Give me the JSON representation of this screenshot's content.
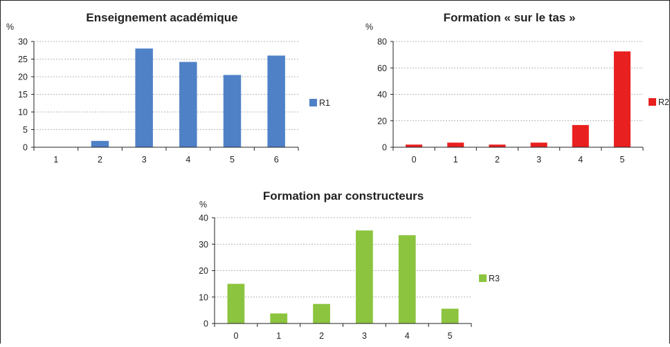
{
  "chart_data": [
    {
      "type": "bar",
      "title": "Enseignement académique",
      "ylabel": "%",
      "categories": [
        "1",
        "2",
        "3",
        "4",
        "5",
        "6"
      ],
      "ylim": [
        0,
        30
      ],
      "yticks": [
        0,
        5,
        10,
        15,
        20,
        25,
        30
      ],
      "grid": true,
      "legend": "right",
      "series": [
        {
          "name": "R1",
          "color": "#4f81c7",
          "values": [
            0,
            1.8,
            28,
            24.2,
            20.5,
            26
          ]
        }
      ]
    },
    {
      "type": "bar",
      "title": "Formation « sur le tas »",
      "ylabel": "%",
      "categories": [
        "0",
        "1",
        "2",
        "3",
        "4",
        "5"
      ],
      "ylim": [
        0,
        80
      ],
      "yticks": [
        0,
        20,
        40,
        60,
        80
      ],
      "grid": true,
      "legend": "right",
      "series": [
        {
          "name": "R2",
          "color": "#e8201f",
          "values": [
            2,
            3.5,
            2,
            3.5,
            16.8,
            72.5
          ]
        }
      ]
    },
    {
      "type": "bar",
      "title": "Formation par constructeurs",
      "ylabel": "%",
      "categories": [
        "0",
        "1",
        "2",
        "3",
        "4",
        "5"
      ],
      "ylim": [
        0,
        40
      ],
      "yticks": [
        0,
        10,
        20,
        30,
        40
      ],
      "grid": true,
      "legend": "right",
      "series": [
        {
          "name": "R3",
          "color": "#8cc43f",
          "values": [
            15,
            3.8,
            7.4,
            35.2,
            33.4,
            5.6
          ]
        }
      ]
    }
  ]
}
